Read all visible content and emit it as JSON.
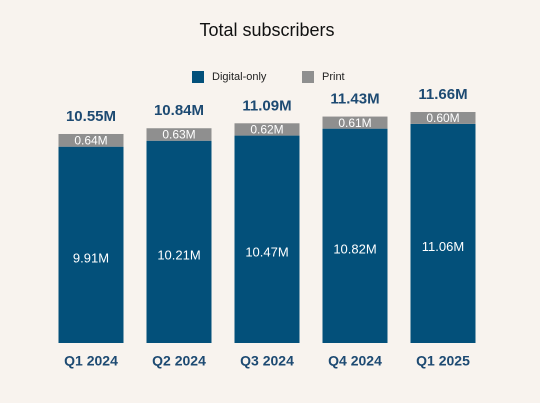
{
  "chart_data": {
    "type": "stacked_bar",
    "title": "Total subscribers",
    "categories": [
      "Q1 2024",
      "Q2 2024",
      "Q3 2024",
      "Q4 2024",
      "Q1 2025"
    ],
    "series": [
      {
        "name": "Digital-only",
        "color": "#03507a",
        "values": [
          9.91,
          10.21,
          10.47,
          10.82,
          11.06
        ],
        "value_labels": [
          "9.91M",
          "10.21M",
          "10.47M",
          "10.82M",
          "11.06M"
        ]
      },
      {
        "name": "Print",
        "color": "#8f8f8f",
        "values": [
          0.64,
          0.63,
          0.62,
          0.61,
          0.6
        ],
        "value_labels": [
          "0.64M",
          "0.63M",
          "0.62M",
          "0.61M",
          "0.60M"
        ]
      }
    ],
    "totals": {
      "values": [
        10.55,
        10.84,
        11.09,
        11.43,
        11.66
      ],
      "value_labels": [
        "10.55M",
        "10.84M",
        "11.09M",
        "11.43M",
        "11.66M"
      ]
    }
  }
}
